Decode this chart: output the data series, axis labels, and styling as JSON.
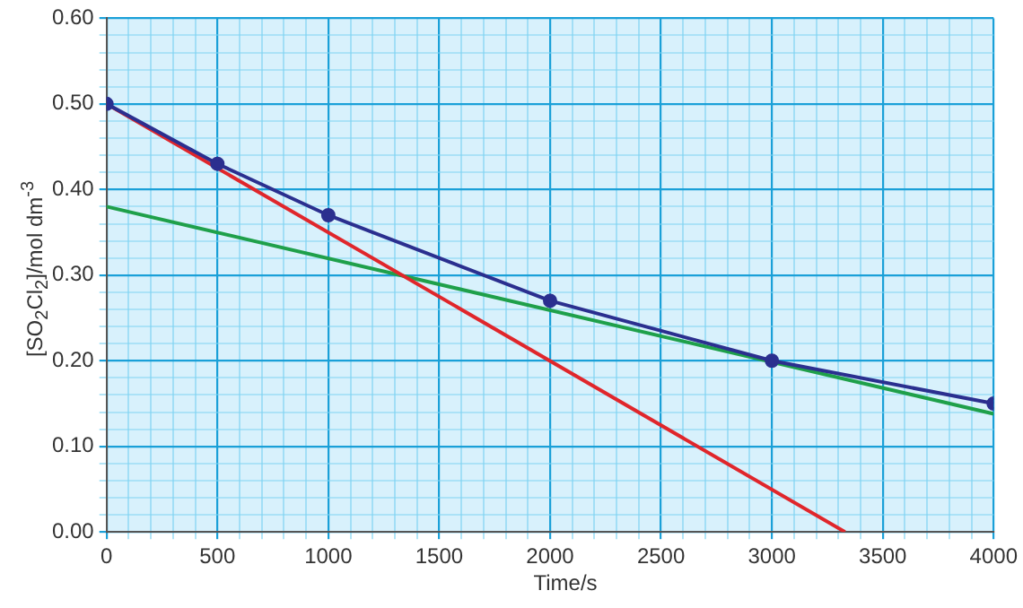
{
  "chart_data": {
    "type": "line",
    "xlabel": "Time/s",
    "ylabel": "[SO$_{2}$Cl$_{2}$]/mol dm$^{-3}$",
    "xlim": [
      0,
      4000
    ],
    "ylim": [
      0,
      0.6
    ],
    "xticks": [
      0,
      {
        "value": 100,
        "label": null
      },
      {
        "value": 200,
        "label": null
      },
      {
        "value": 300,
        "label": null
      },
      {
        "value": 400,
        "label": null
      },
      500,
      {
        "value": 600,
        "label": null
      },
      {
        "value": 700,
        "label": null
      },
      {
        "value": 800,
        "label": null
      },
      {
        "value": 900,
        "label": null
      },
      1000,
      {
        "value": 1100,
        "label": null
      },
      {
        "value": 1200,
        "label": null
      },
      {
        "value": 1300,
        "label": null
      },
      {
        "value": 1400,
        "label": null
      },
      1500,
      {
        "value": 1600,
        "label": null
      },
      {
        "value": 1700,
        "label": null
      },
      {
        "value": 1800,
        "label": null
      },
      {
        "value": 1900,
        "label": null
      },
      2000,
      {
        "value": 2100,
        "label": null
      },
      {
        "value": 2200,
        "label": null
      },
      {
        "value": 2300,
        "label": null
      },
      {
        "value": 2400,
        "label": null
      },
      2500,
      {
        "value": 2600,
        "label": null
      },
      {
        "value": 2700,
        "label": null
      },
      {
        "value": 2800,
        "label": null
      },
      {
        "value": 2900,
        "label": null
      },
      3000,
      {
        "value": 3100,
        "label": null
      },
      {
        "value": 3200,
        "label": null
      },
      {
        "value": 3300,
        "label": null
      },
      {
        "value": 3400,
        "label": null
      },
      3500,
      {
        "value": 3600,
        "label": null
      },
      {
        "value": 3700,
        "label": null
      },
      {
        "value": 3800,
        "label": null
      },
      {
        "value": 3900,
        "label": null
      },
      4000
    ],
    "yticks": [
      {
        "value": 0,
        "label": "0.00"
      },
      {
        "value": 0.02,
        "label": null
      },
      {
        "value": 0.04,
        "label": null
      },
      {
        "value": 0.06,
        "label": null
      },
      {
        "value": 0.08,
        "label": null
      },
      {
        "value": 0.1,
        "label": "0.10"
      },
      {
        "value": 0.12,
        "label": null
      },
      {
        "value": 0.14,
        "label": null
      },
      {
        "value": 0.16,
        "label": null
      },
      {
        "value": 0.18,
        "label": null
      },
      {
        "value": 0.2,
        "label": "0.20"
      },
      {
        "value": 0.22,
        "label": null
      },
      {
        "value": 0.24,
        "label": null
      },
      {
        "value": 0.26,
        "label": null
      },
      {
        "value": 0.28,
        "label": null
      },
      {
        "value": 0.3,
        "label": "0.30"
      },
      {
        "value": 0.32,
        "label": null
      },
      {
        "value": 0.34,
        "label": null
      },
      {
        "value": 0.36,
        "label": null
      },
      {
        "value": 0.38,
        "label": null
      },
      {
        "value": 0.4,
        "label": "0.40"
      },
      {
        "value": 0.42,
        "label": null
      },
      {
        "value": 0.44,
        "label": null
      },
      {
        "value": 0.46,
        "label": null
      },
      {
        "value": 0.48,
        "label": null
      },
      {
        "value": 0.5,
        "label": "0.50"
      },
      {
        "value": 0.52,
        "label": null
      },
      {
        "value": 0.54,
        "label": null
      },
      {
        "value": 0.56,
        "label": null
      },
      {
        "value": 0.58,
        "label": null
      },
      {
        "value": 0.6,
        "label": "0.60"
      }
    ],
    "grid": true,
    "legend": false,
    "line_style": "solid",
    "series": [
      {
        "color": "#2b2f8f",
        "marker": "circle",
        "x": [
          0,
          500,
          1000,
          2000,
          3000,
          4000
        ],
        "values": [
          0.5,
          0.43,
          0.37,
          0.27,
          0.2,
          0.15
        ]
      },
      {
        "color": "#e0262b",
        "marker": "none",
        "x": [
          0,
          3330
        ],
        "values": [
          0.5,
          0
        ]
      },
      {
        "color": "#1fa04a",
        "marker": "none",
        "x": [
          0,
          4000
        ],
        "values": [
          0.38,
          0.138
        ]
      }
    ]
  }
}
